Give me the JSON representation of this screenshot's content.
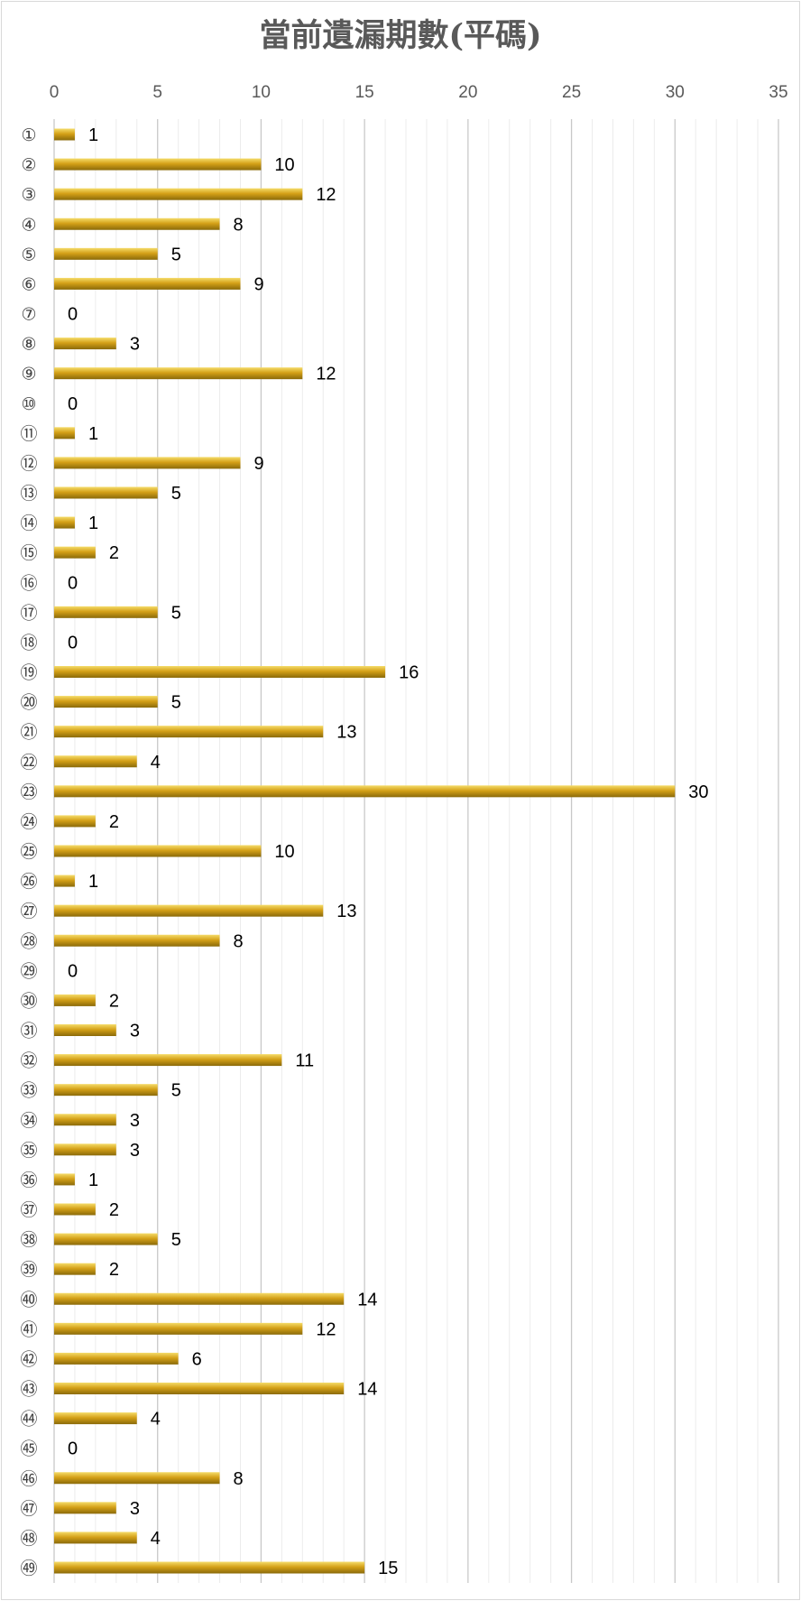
{
  "chart_data": {
    "type": "bar",
    "orientation": "horizontal",
    "title": "當前遺漏期數(平碼)",
    "xlabel": "",
    "ylabel": "",
    "xlim": [
      0,
      35
    ],
    "x_ticks": [
      0,
      5,
      10,
      15,
      20,
      25,
      30,
      35
    ],
    "x_axis_position": "top",
    "grid": true,
    "legend": "none",
    "data_labels": true,
    "bar_color": "#d4a017",
    "bar_highlight_color": "#f5dc6a",
    "bar_shadow_color": "#8a6a0a",
    "categories": [
      "①",
      "②",
      "③",
      "④",
      "⑤",
      "⑥",
      "⑦",
      "⑧",
      "⑨",
      "⑩",
      "⑪",
      "⑫",
      "⑬",
      "⑭",
      "⑮",
      "⑯",
      "⑰",
      "⑱",
      "⑲",
      "⑳",
      "㉑",
      "㉒",
      "㉓",
      "㉔",
      "㉕",
      "㉖",
      "㉗",
      "㉘",
      "㉙",
      "㉚",
      "㉛",
      "㉜",
      "㉝",
      "㉞",
      "㉟",
      "㊱",
      "㊲",
      "㊳",
      "㊴",
      "㊵",
      "㊶",
      "㊷",
      "㊸",
      "㊹",
      "㊺",
      "㊻",
      "㊼",
      "㊽",
      "㊾"
    ],
    "values": [
      1,
      10,
      12,
      8,
      5,
      9,
      0,
      3,
      12,
      0,
      1,
      9,
      5,
      1,
      2,
      0,
      5,
      0,
      16,
      5,
      13,
      4,
      30,
      2,
      10,
      1,
      13,
      8,
      0,
      2,
      3,
      11,
      5,
      3,
      3,
      1,
      2,
      5,
      2,
      14,
      12,
      6,
      14,
      4,
      0,
      8,
      3,
      4,
      15
    ]
  }
}
